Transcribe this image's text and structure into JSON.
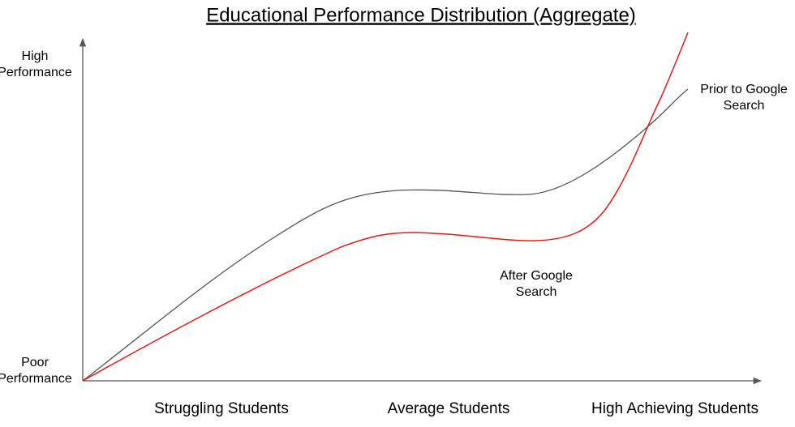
{
  "title": "Educational Performance Distribution (Aggregate)",
  "y_axis": {
    "top": [
      "High",
      "Performance"
    ],
    "bottom": [
      "Poor",
      "Performance"
    ]
  },
  "x_axis": [
    "Struggling Students",
    "Average Students",
    "High Achieving Students"
  ],
  "curves": [
    {
      "label": [
        "Prior to Google",
        "Search"
      ]
    },
    {
      "label": [
        "After Google",
        "Search"
      ]
    }
  ]
}
